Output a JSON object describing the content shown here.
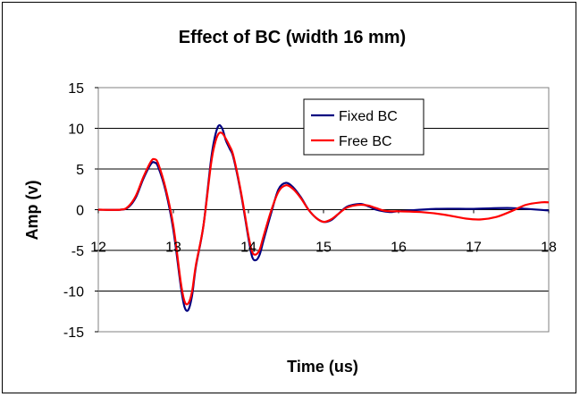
{
  "chart_data": {
    "type": "line",
    "title": "Effect of BC (width 16 mm)",
    "xlabel": "Time (us)",
    "ylabel": "Amp (v)",
    "xlim": [
      12,
      18
    ],
    "ylim": [
      -15,
      15
    ],
    "xticks": [
      "12",
      "13",
      "14",
      "15",
      "16",
      "17",
      "18"
    ],
    "yticks": [
      "15",
      "10",
      "5",
      "0",
      "-5",
      "-10",
      "-15"
    ],
    "grid": "horizontal",
    "legend_position": "top-right",
    "series": [
      {
        "name": "Fixed BC",
        "color": "#000080",
        "x": [
          12.0,
          12.3,
          12.4,
          12.5,
          12.6,
          12.7,
          12.75,
          12.8,
          12.9,
          13.0,
          13.1,
          13.15,
          13.2,
          13.25,
          13.3,
          13.4,
          13.5,
          13.55,
          13.6,
          13.65,
          13.7,
          13.75,
          13.8,
          13.9,
          14.0,
          14.05,
          14.1,
          14.15,
          14.2,
          14.3,
          14.4,
          14.5,
          14.6,
          14.7,
          14.8,
          14.9,
          15.0,
          15.1,
          15.2,
          15.3,
          15.4,
          15.5,
          15.6,
          15.7,
          15.8,
          15.9,
          16.0,
          16.5,
          17.0,
          17.5,
          18.0
        ],
        "y": [
          0,
          0,
          0.3,
          1.5,
          3.8,
          5.6,
          5.8,
          5.2,
          2.2,
          -2.5,
          -9.5,
          -12,
          -12.3,
          -10.5,
          -7,
          -2,
          6,
          8.8,
          10.3,
          10,
          8.5,
          7.5,
          6.4,
          2,
          -3.5,
          -5.8,
          -6.2,
          -5.5,
          -3.8,
          -0.5,
          2.5,
          3.3,
          2.7,
          1.5,
          0,
          -1,
          -1.5,
          -1.3,
          -0.5,
          0.3,
          0.6,
          0.7,
          0.4,
          0,
          -0.2,
          -0.3,
          -0.2,
          0.1,
          0.1,
          0.2,
          -0.1
        ]
      },
      {
        "name": "Free BC",
        "color": "#ff0000",
        "x": [
          12.0,
          12.3,
          12.4,
          12.5,
          12.6,
          12.7,
          12.75,
          12.8,
          12.9,
          13.0,
          13.1,
          13.15,
          13.2,
          13.25,
          13.3,
          13.4,
          13.5,
          13.55,
          13.6,
          13.65,
          13.7,
          13.75,
          13.8,
          13.9,
          14.0,
          14.05,
          14.1,
          14.15,
          14.2,
          14.3,
          14.4,
          14.5,
          14.6,
          14.7,
          14.8,
          14.9,
          15.0,
          15.1,
          15.2,
          15.3,
          15.4,
          15.5,
          15.6,
          15.7,
          15.8,
          15.9,
          16.0,
          16.3,
          16.6,
          16.9,
          17.1,
          17.3,
          17.5,
          17.7,
          17.9,
          18.0
        ],
        "y": [
          0,
          0,
          0.4,
          1.7,
          4.0,
          5.9,
          6.2,
          5.6,
          2.5,
          -2.0,
          -9.0,
          -11.3,
          -11.5,
          -10,
          -6.8,
          -2,
          5.5,
          8,
          9.3,
          9.4,
          8.7,
          7.8,
          6.6,
          2.2,
          -3.2,
          -5.2,
          -5.5,
          -4.9,
          -3.3,
          -0.2,
          2.2,
          3.0,
          2.5,
          1.4,
          0,
          -1,
          -1.5,
          -1.2,
          -0.5,
          0.2,
          0.5,
          0.6,
          0.5,
          0.2,
          -0.1,
          -0.2,
          -0.2,
          -0.3,
          -0.6,
          -1.1,
          -1.2,
          -0.9,
          -0.2,
          0.6,
          0.9,
          0.9
        ]
      }
    ]
  }
}
